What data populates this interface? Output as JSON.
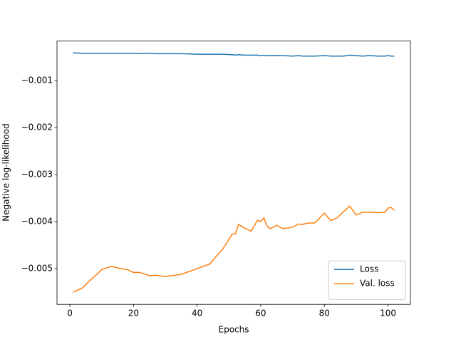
{
  "chart_data": {
    "type": "line",
    "xlabel": "Epochs",
    "ylabel": "Negative log-likelihood",
    "x": [
      1,
      4,
      6,
      9,
      10,
      13,
      16,
      18,
      20,
      22,
      25,
      27,
      30,
      35,
      40,
      44,
      46,
      48,
      51,
      52,
      53,
      55,
      57,
      59,
      60,
      61,
      62,
      63,
      65,
      67,
      70,
      72,
      73,
      75,
      77,
      80,
      82,
      84,
      86,
      88,
      90,
      92,
      94,
      97,
      99,
      100,
      101,
      102
    ],
    "series": [
      {
        "name": "Loss",
        "color": "#1f77b4",
        "values": [
          -0.00041,
          -0.00042,
          -0.00042,
          -0.00042,
          -0.00042,
          -0.00042,
          -0.00042,
          -0.00042,
          -0.00042,
          -0.00043,
          -0.00042,
          -0.00043,
          -0.00043,
          -0.00043,
          -0.00044,
          -0.00044,
          -0.00044,
          -0.00044,
          -0.00045,
          -0.00046,
          -0.00045,
          -0.00046,
          -0.00046,
          -0.00046,
          -0.00047,
          -0.00046,
          -0.00047,
          -0.00047,
          -0.00047,
          -0.00047,
          -0.00048,
          -0.00047,
          -0.00048,
          -0.00048,
          -0.00048,
          -0.00047,
          -0.00048,
          -0.00048,
          -0.00048,
          -0.00046,
          -0.00047,
          -0.00048,
          -0.00047,
          -0.00048,
          -0.00048,
          -0.00047,
          -0.00048,
          -0.00048
        ]
      },
      {
        "name": "Val. loss",
        "color": "#ff7f0e",
        "values": [
          -0.0055,
          -0.00541,
          -0.00527,
          -0.00509,
          -0.00502,
          -0.00495,
          -0.005,
          -0.00502,
          -0.00508,
          -0.00508,
          -0.00515,
          -0.00514,
          -0.00517,
          -0.00512,
          -0.005,
          -0.0049,
          -0.00474,
          -0.00459,
          -0.00427,
          -0.00426,
          -0.00406,
          -0.00414,
          -0.0042,
          -0.00397,
          -0.004,
          -0.00392,
          -0.0041,
          -0.00415,
          -0.00408,
          -0.00415,
          -0.00412,
          -0.00405,
          -0.00406,
          -0.00403,
          -0.00403,
          -0.00382,
          -0.00398,
          -0.00392,
          -0.00379,
          -0.00367,
          -0.00386,
          -0.0038,
          -0.0038,
          -0.00381,
          -0.0038,
          -0.00371,
          -0.0037,
          -0.00376
        ]
      }
    ],
    "xlim": [
      -4.05,
      107.05
    ],
    "xticks": [
      0,
      20,
      40,
      60,
      80,
      100
    ],
    "ylim": [
      -0.00576,
      -0.00016
    ],
    "yticks": [
      {
        "value": -0.005,
        "label": "−0.005"
      },
      {
        "value": -0.004,
        "label": "−0.004"
      },
      {
        "value": -0.003,
        "label": "−0.003"
      },
      {
        "value": -0.002,
        "label": "−0.002"
      },
      {
        "value": -0.001,
        "label": "−0.001"
      }
    ],
    "legend": "lower right"
  }
}
